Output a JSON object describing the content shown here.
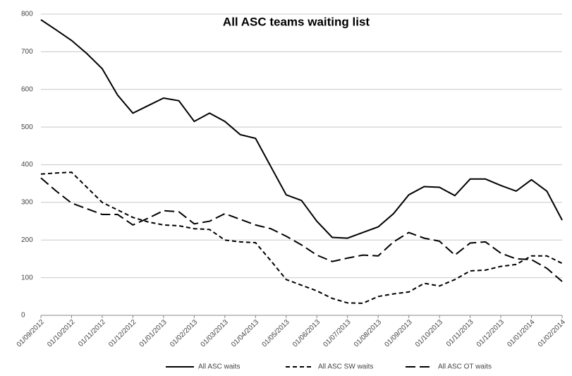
{
  "chart_data": {
    "type": "line",
    "title": "All ASC teams waiting list",
    "categories": [
      "01/09/2012",
      null,
      "01/10/2012",
      null,
      "01/11/2012",
      null,
      "01/12/2012",
      null,
      "01/01/2013",
      null,
      "01/02/2013",
      null,
      "01/03/2013",
      null,
      "01/04/2013",
      null,
      "01/05/2013",
      null,
      "01/06/2013",
      null,
      "01/07/2013",
      null,
      "01/08/2013",
      null,
      "01/09/2013",
      null,
      "01/10/2013",
      null,
      "01/11/2013",
      null,
      "01/12/2013",
      null,
      "01/01/2014",
      null,
      "01/02/2014"
    ],
    "series": [
      {
        "name": "All ASC waits",
        "color": "#000000",
        "dash": "solid",
        "values": [
          785,
          758,
          730,
          695,
          655,
          585,
          537,
          557,
          577,
          570,
          515,
          537,
          515,
          480,
          470,
          395,
          320,
          305,
          250,
          207,
          205,
          220,
          235,
          270,
          320,
          342,
          340,
          318,
          362,
          362,
          345,
          330,
          360,
          330,
          253
        ]
      },
      {
        "name": "All ASC SW waits",
        "color": "#000000",
        "dash": "short",
        "values": [
          375,
          378,
          380,
          340,
          300,
          280,
          260,
          248,
          240,
          238,
          230,
          228,
          200,
          195,
          193,
          145,
          95,
          80,
          65,
          45,
          33,
          32,
          50,
          57,
          62,
          85,
          78,
          95,
          118,
          120,
          130,
          135,
          158,
          158,
          138
        ]
      },
      {
        "name": "All ASC OT waits",
        "color": "#000000",
        "dash": "long",
        "values": [
          365,
          330,
          298,
          283,
          268,
          268,
          240,
          258,
          278,
          275,
          243,
          250,
          270,
          255,
          240,
          230,
          210,
          187,
          160,
          143,
          152,
          160,
          158,
          195,
          220,
          205,
          197,
          160,
          192,
          195,
          165,
          150,
          148,
          125,
          90
        ]
      }
    ],
    "ylim": [
      0,
      800
    ],
    "yticks": [
      0,
      100,
      200,
      300,
      400,
      500,
      600,
      700,
      800
    ],
    "grid": true,
    "legend": "bottom"
  }
}
